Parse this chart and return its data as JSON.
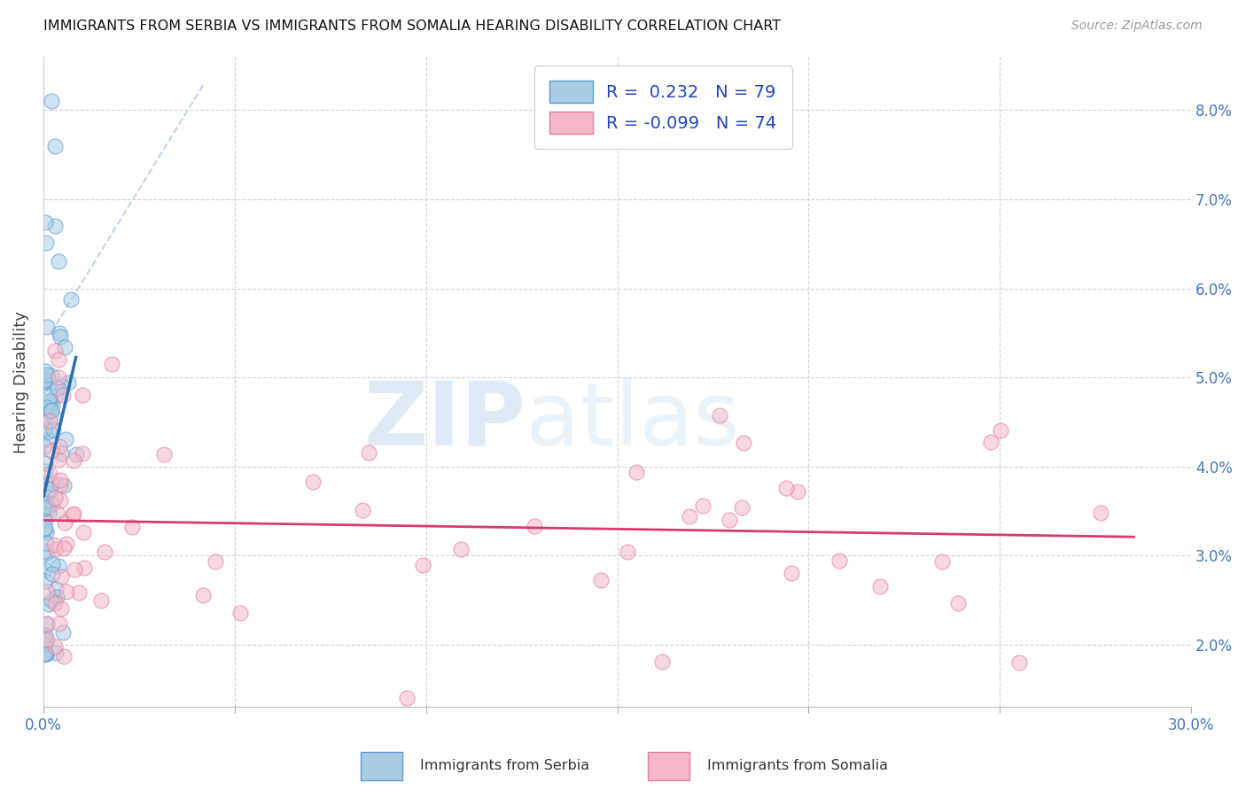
{
  "title": "IMMIGRANTS FROM SERBIA VS IMMIGRANTS FROM SOMALIA HEARING DISABILITY CORRELATION CHART",
  "source": "Source: ZipAtlas.com",
  "ylabel": "Hearing Disability",
  "xlim": [
    0.0,
    0.3
  ],
  "ylim": [
    0.013,
    0.086
  ],
  "serbia_color": "#a8cce4",
  "somalia_color": "#f4b8c8",
  "serbia_edge": "#5b9bd5",
  "somalia_edge": "#e080a0",
  "serbia_line_color": "#2b6cb0",
  "somalia_line_color": "#d63b6e",
  "diag_line_color": "#b8d0e8",
  "R_serbia": 0.232,
  "N_serbia": 79,
  "R_somalia": -0.099,
  "N_somalia": 74,
  "legend_label_serbia": "Immigrants from Serbia",
  "legend_label_somalia": "Immigrants from Somalia",
  "x_tick_positions": [
    0.0,
    0.05,
    0.1,
    0.15,
    0.2,
    0.25,
    0.3
  ],
  "y_tick_positions": [
    0.02,
    0.03,
    0.04,
    0.05,
    0.06,
    0.07,
    0.08
  ],
  "y_tick_labels": [
    "2.0%",
    "3.0%",
    "4.0%",
    "5.0%",
    "6.0%",
    "7.0%",
    "8.0%"
  ],
  "watermark_zip": "ZIP",
  "watermark_atlas": "atlas"
}
